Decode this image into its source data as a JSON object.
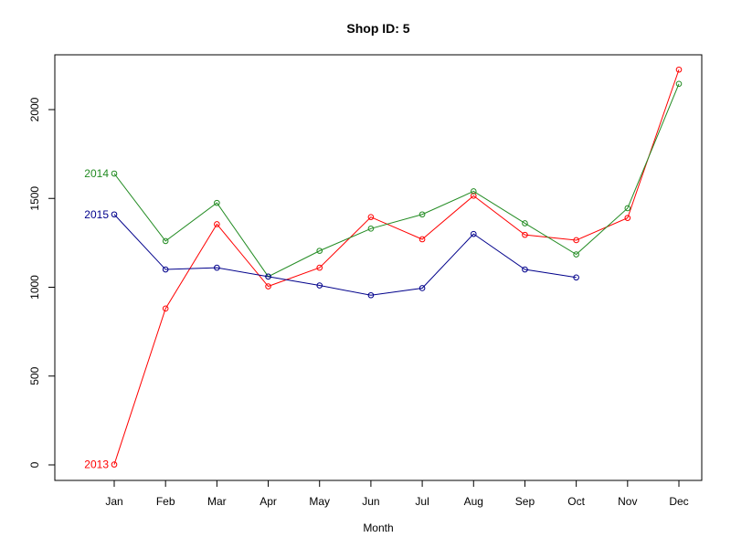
{
  "chart_data": {
    "type": "line",
    "title": "Shop ID: 5",
    "xlabel": "Month",
    "ylabel": "",
    "categories": [
      "Jan",
      "Feb",
      "Mar",
      "Apr",
      "May",
      "Jun",
      "Jul",
      "Aug",
      "Sep",
      "Oct",
      "Nov",
      "Dec"
    ],
    "yticks": [
      0,
      500,
      1000,
      1500,
      2000
    ],
    "ylim": [
      -80,
      2300
    ],
    "grid": false,
    "series": [
      {
        "name": "2013",
        "color": "#ff0000",
        "values": [
          2,
          880,
          1355,
          1005,
          1110,
          1395,
          1270,
          1515,
          1295,
          1265,
          1390,
          2225
        ]
      },
      {
        "name": "2014",
        "color": "#228b22",
        "values": [
          1640,
          1260,
          1475,
          1060,
          1205,
          1330,
          1410,
          1540,
          1360,
          1185,
          1445,
          2145
        ]
      },
      {
        "name": "2015",
        "color": "#00008b",
        "values": [
          1410,
          1100,
          1110,
          1060,
          1010,
          955,
          995,
          1300,
          1100,
          1055,
          null,
          null
        ]
      }
    ]
  }
}
